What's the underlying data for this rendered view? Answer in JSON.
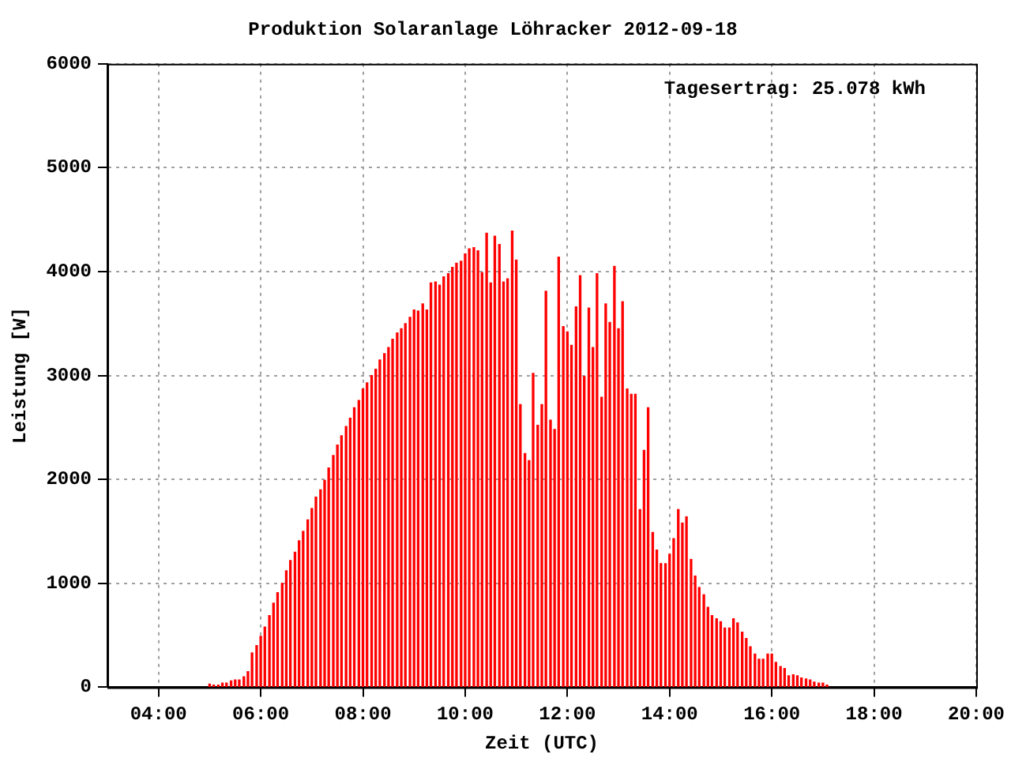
{
  "chart_data": {
    "type": "bar",
    "title": "Produktion Solaranlage Löhracker 2012-09-18",
    "xlabel": "Zeit (UTC)",
    "ylabel": "Leistung [W]",
    "annotations": [
      "Tagesertrag: 25.078 kWh"
    ],
    "x": [
      5,
      5.08,
      5.17,
      5.25,
      5.33,
      5.42,
      5.5,
      5.58,
      5.67,
      5.75,
      5.83,
      5.92,
      6,
      6.08,
      6.17,
      6.25,
      6.33,
      6.42,
      6.5,
      6.58,
      6.67,
      6.75,
      6.83,
      6.92,
      7,
      7.08,
      7.17,
      7.25,
      7.33,
      7.42,
      7.5,
      7.58,
      7.67,
      7.75,
      7.83,
      7.92,
      8,
      8.08,
      8.17,
      8.25,
      8.33,
      8.42,
      8.5,
      8.58,
      8.67,
      8.75,
      8.83,
      8.92,
      9,
      9.08,
      9.17,
      9.25,
      9.33,
      9.42,
      9.5,
      9.58,
      9.67,
      9.75,
      9.83,
      9.92,
      10,
      10.08,
      10.17,
      10.25,
      10.33,
      10.42,
      10.5,
      10.58,
      10.67,
      10.75,
      10.83,
      10.92,
      11,
      11.08,
      11.17,
      11.25,
      11.33,
      11.42,
      11.5,
      11.58,
      11.67,
      11.75,
      11.83,
      11.92,
      12,
      12.08,
      12.17,
      12.25,
      12.33,
      12.42,
      12.5,
      12.58,
      12.67,
      12.75,
      12.83,
      12.92,
      13,
      13.08,
      13.17,
      13.25,
      13.33,
      13.42,
      13.5,
      13.58,
      13.67,
      13.75,
      13.83,
      13.92,
      14,
      14.08,
      14.17,
      14.25,
      14.33,
      14.42,
      14.5,
      14.58,
      14.67,
      14.75,
      14.83,
      14.92,
      15,
      15.08,
      15.17,
      15.25,
      15.33,
      15.42,
      15.5,
      15.58,
      15.67,
      15.75,
      15.83,
      15.92,
      16,
      16.08,
      16.17,
      16.25,
      16.33,
      16.42,
      16.5,
      16.58,
      16.67,
      16.75,
      16.83,
      16.92,
      17,
      17.08
    ],
    "series": [
      {
        "color": "#ff0000",
        "values": [
          30,
          20,
          20,
          40,
          40,
          60,
          70,
          70,
          100,
          150,
          330,
          400,
          490,
          580,
          690,
          810,
          910,
          1000,
          1120,
          1220,
          1300,
          1410,
          1500,
          1610,
          1720,
          1830,
          1900,
          1990,
          2110,
          2230,
          2330,
          2420,
          2510,
          2590,
          2690,
          2760,
          2870,
          2930,
          3000,
          3060,
          3150,
          3210,
          3270,
          3350,
          3410,
          3450,
          3500,
          3560,
          3630,
          3620,
          3690,
          3630,
          3890,
          3900,
          3870,
          3950,
          3980,
          4040,
          4080,
          4100,
          4170,
          4220,
          4230,
          4200,
          3990,
          4370,
          3890,
          4340,
          4260,
          3900,
          3930,
          4390,
          4110,
          2720,
          2250,
          2180,
          3020,
          2520,
          2720,
          3810,
          2570,
          2480,
          4140,
          3470,
          3420,
          3290,
          3660,
          3960,
          2990,
          3650,
          3270,
          3980,
          2790,
          3690,
          3510,
          4050,
          3450,
          3710,
          2870,
          2820,
          2820,
          1710,
          2280,
          2690,
          1490,
          1320,
          1190,
          1190,
          1280,
          1430,
          1710,
          1580,
          1640,
          1230,
          1070,
          960,
          890,
          770,
          690,
          660,
          630,
          570,
          570,
          660,
          620,
          530,
          470,
          390,
          320,
          270,
          270,
          320,
          320,
          240,
          200,
          180,
          110,
          120,
          110,
          90,
          80,
          70,
          50,
          40,
          40,
          20
        ]
      }
    ],
    "xlim": [
      3,
      20
    ],
    "xticks": [
      {
        "value": 4,
        "label": "04:00"
      },
      {
        "value": 6,
        "label": "06:00"
      },
      {
        "value": 8,
        "label": "08:00"
      },
      {
        "value": 10,
        "label": "10:00"
      },
      {
        "value": 12,
        "label": "12:00"
      },
      {
        "value": 14,
        "label": "14:00"
      },
      {
        "value": 16,
        "label": "16:00"
      },
      {
        "value": 18,
        "label": "18:00"
      },
      {
        "value": 20,
        "label": "20:00"
      }
    ],
    "ylim": [
      0,
      6000
    ],
    "yticks": [
      0,
      1000,
      2000,
      3000,
      4000,
      5000,
      6000
    ],
    "grid": true
  }
}
